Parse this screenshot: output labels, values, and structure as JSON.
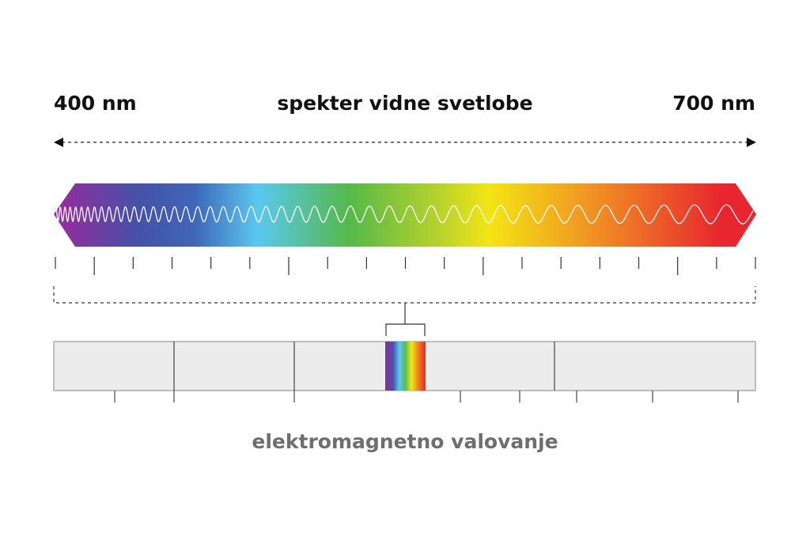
{
  "header": {
    "left_label": "400 nm",
    "title": "spekter vidne svetlobe",
    "right_label": "700 nm"
  },
  "footer": {
    "label": "elektromagnetno valovanje"
  }
}
